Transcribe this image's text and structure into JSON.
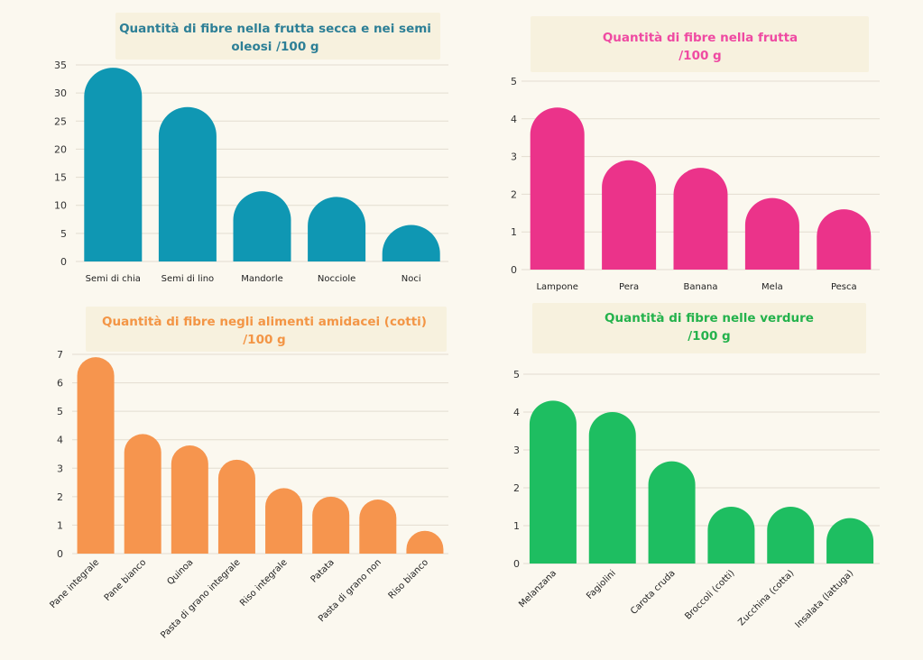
{
  "chart_data": [
    {
      "type": "bar",
      "title_parts": [
        {
          "text": "Quantità di fibre nella frutta secca e nei semi"
        },
        {
          "text": "oleosi /100 g"
        }
      ],
      "color": "#0f97b3",
      "title_color": "#2d7f96",
      "categories": [
        "Semi di chia",
        "Semi di lino",
        "Mandorle",
        "Nocciole",
        "Noci"
      ],
      "values": [
        34.5,
        27.5,
        12.5,
        11.5,
        6.5
      ],
      "ylim": [
        0,
        35
      ],
      "yticks": [
        0,
        5,
        10,
        15,
        20,
        25,
        30,
        35
      ],
      "grid": true
    },
    {
      "type": "bar",
      "title_parts": [
        {
          "text": "Quantità di fibre nella frutta"
        },
        {
          "text": "/100 g"
        }
      ],
      "color": "#eb338a",
      "title_color": "#ef4aa2",
      "categories": [
        "Lampone",
        "Pera",
        "Banana",
        "Mela",
        "Pesca"
      ],
      "values": [
        4.3,
        2.9,
        2.7,
        1.9,
        1.6
      ],
      "ylim": [
        0,
        5
      ],
      "yticks": [
        0,
        1,
        2,
        3,
        4,
        5
      ],
      "grid": true
    },
    {
      "type": "bar",
      "title_parts": [
        {
          "text": "Quantità di fibre negli alimenti amidacei (cotti)"
        },
        {
          "text": "/100 g"
        }
      ],
      "color": "#f6954e",
      "title_color": "#f39545",
      "categories": [
        "Pane integrale",
        "Pane bianco",
        "Quinoa",
        "Pasta di grano integrale",
        "Riso integrale",
        "Patata",
        "Pasta di grano non",
        "Riso bianco"
      ],
      "values": [
        6.9,
        4.2,
        3.8,
        3.3,
        2.3,
        2.0,
        1.9,
        0.8
      ],
      "ylim": [
        0,
        7
      ],
      "yticks": [
        0,
        1,
        2,
        3,
        4,
        5,
        6,
        7
      ],
      "grid": true
    },
    {
      "type": "bar",
      "title_parts": [
        {
          "text": "Quantità di fibre nelle verdure"
        },
        {
          "text": "/100 g"
        }
      ],
      "color": "#1ebe61",
      "title_color": "#24b24c",
      "categories": [
        "Melanzana",
        "Fagiolini",
        "Carota cruda",
        "Broccoli (cotti)",
        "Zucchina (cotta)",
        "Insalata (lattuga)"
      ],
      "values": [
        4.3,
        4.0,
        2.7,
        1.5,
        1.5,
        1.2
      ],
      "ylim": [
        0,
        5
      ],
      "yticks": [
        0,
        1,
        2,
        3,
        4,
        5
      ],
      "grid": true
    }
  ]
}
